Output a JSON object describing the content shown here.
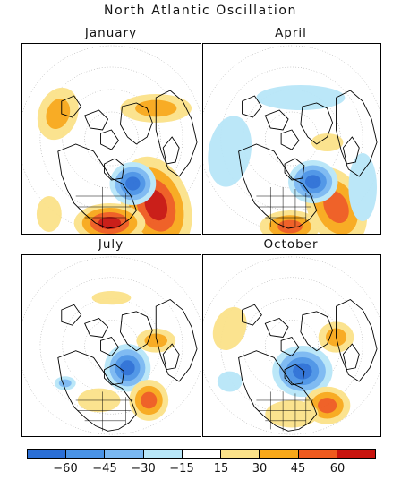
{
  "title": "North Atlantic Oscillation",
  "panels": [
    {
      "title": "January"
    },
    {
      "title": "April"
    },
    {
      "title": "July"
    },
    {
      "title": "October"
    }
  ],
  "colorbar": {
    "colors": [
      "#2b6fd6",
      "#4a93e6",
      "#7ab8f2",
      "#b8e6f8",
      "#ffffff",
      "#fbe28a",
      "#f8a81a",
      "#ef5a1e",
      "#c8140e"
    ],
    "tick_labels": [
      "−60",
      "−45",
      "−30",
      "−15",
      "15",
      "30",
      "45",
      "60"
    ]
  },
  "icons": {
    "map": "north-polar-stereographic-map-icon"
  }
}
